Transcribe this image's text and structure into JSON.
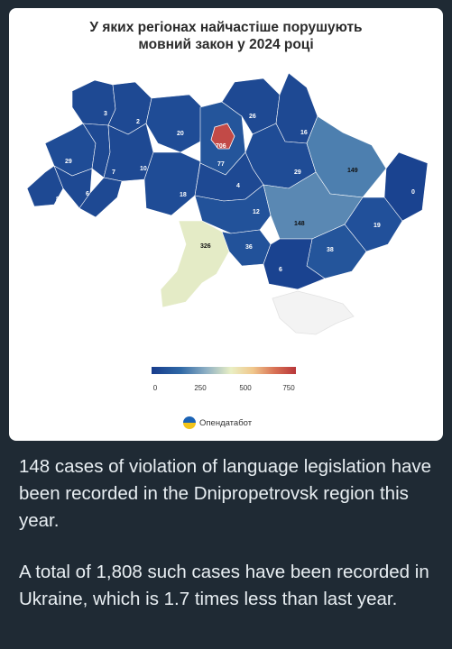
{
  "map": {
    "title_line1": "У яких регіонах найчастіше порушують",
    "title_line2": "мовний закон у 2024 році",
    "region_values": [
      "3",
      "2",
      "20",
      "26",
      "16",
      "706",
      "29",
      "7",
      "10",
      "77",
      "29",
      "149",
      "6",
      "8",
      "4",
      "18",
      "12",
      "0",
      "148",
      "19",
      "326",
      "36",
      "38",
      "6"
    ],
    "legend_ticks": [
      "0",
      "250",
      "500",
      "750"
    ],
    "colors": {
      "low": "#173c8c",
      "mid": "#e9efc4",
      "high": "#b8373a",
      "crimea": "#f3f3f3"
    },
    "brand": "Опендатабот"
  },
  "message": {
    "paragraph1": "148 cases of violation of language legislation have been recorded in the Dnipropetrovsk region this year.",
    "paragraph2": "A total of 1,808 such cases have been recorded in Ukraine, which is 1.7 times less than last year."
  }
}
